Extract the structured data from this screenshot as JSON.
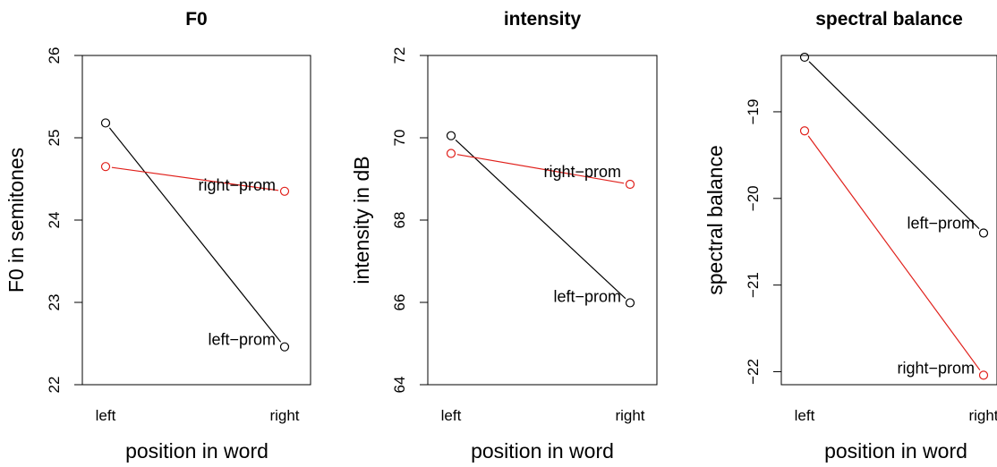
{
  "chart_data": [
    {
      "type": "line",
      "title": "F0",
      "xlabel": "position in word",
      "ylabel": "F0 in semitones",
      "categories": [
        "left",
        "right"
      ],
      "ylim": [
        22,
        26
      ],
      "yticks": [
        22,
        23,
        24,
        25,
        26
      ],
      "grid": false,
      "series": [
        {
          "name": "left-prom",
          "values": [
            25.18,
            22.46
          ],
          "color": "#000000"
        },
        {
          "name": "right-prom",
          "values": [
            24.65,
            24.35
          ],
          "color": "#e0201b"
        }
      ]
    },
    {
      "type": "line",
      "title": "intensity",
      "xlabel": "position in word",
      "ylabel": "intensity in dB",
      "categories": [
        "left",
        "right"
      ],
      "ylim": [
        64,
        72
      ],
      "yticks": [
        64,
        66,
        68,
        70,
        72
      ],
      "grid": false,
      "series": [
        {
          "name": "left-prom",
          "values": [
            70.05,
            65.99
          ],
          "color": "#000000"
        },
        {
          "name": "right-prom",
          "values": [
            69.62,
            68.87
          ],
          "color": "#e0201b"
        }
      ]
    },
    {
      "type": "line",
      "title": "spectral balance",
      "xlabel": "position in word",
      "ylabel": "spectral balance",
      "categories": [
        "left",
        "right"
      ],
      "ylim": [
        -22.15,
        -18.35
      ],
      "yticks": [
        -22,
        -21,
        -20,
        -19
      ],
      "grid": false,
      "series": [
        {
          "name": "left-prom",
          "values": [
            -18.37,
            -20.4
          ],
          "color": "#000000"
        },
        {
          "name": "right-prom",
          "values": [
            -19.22,
            -22.04
          ],
          "color": "#e0201b"
        }
      ]
    }
  ]
}
